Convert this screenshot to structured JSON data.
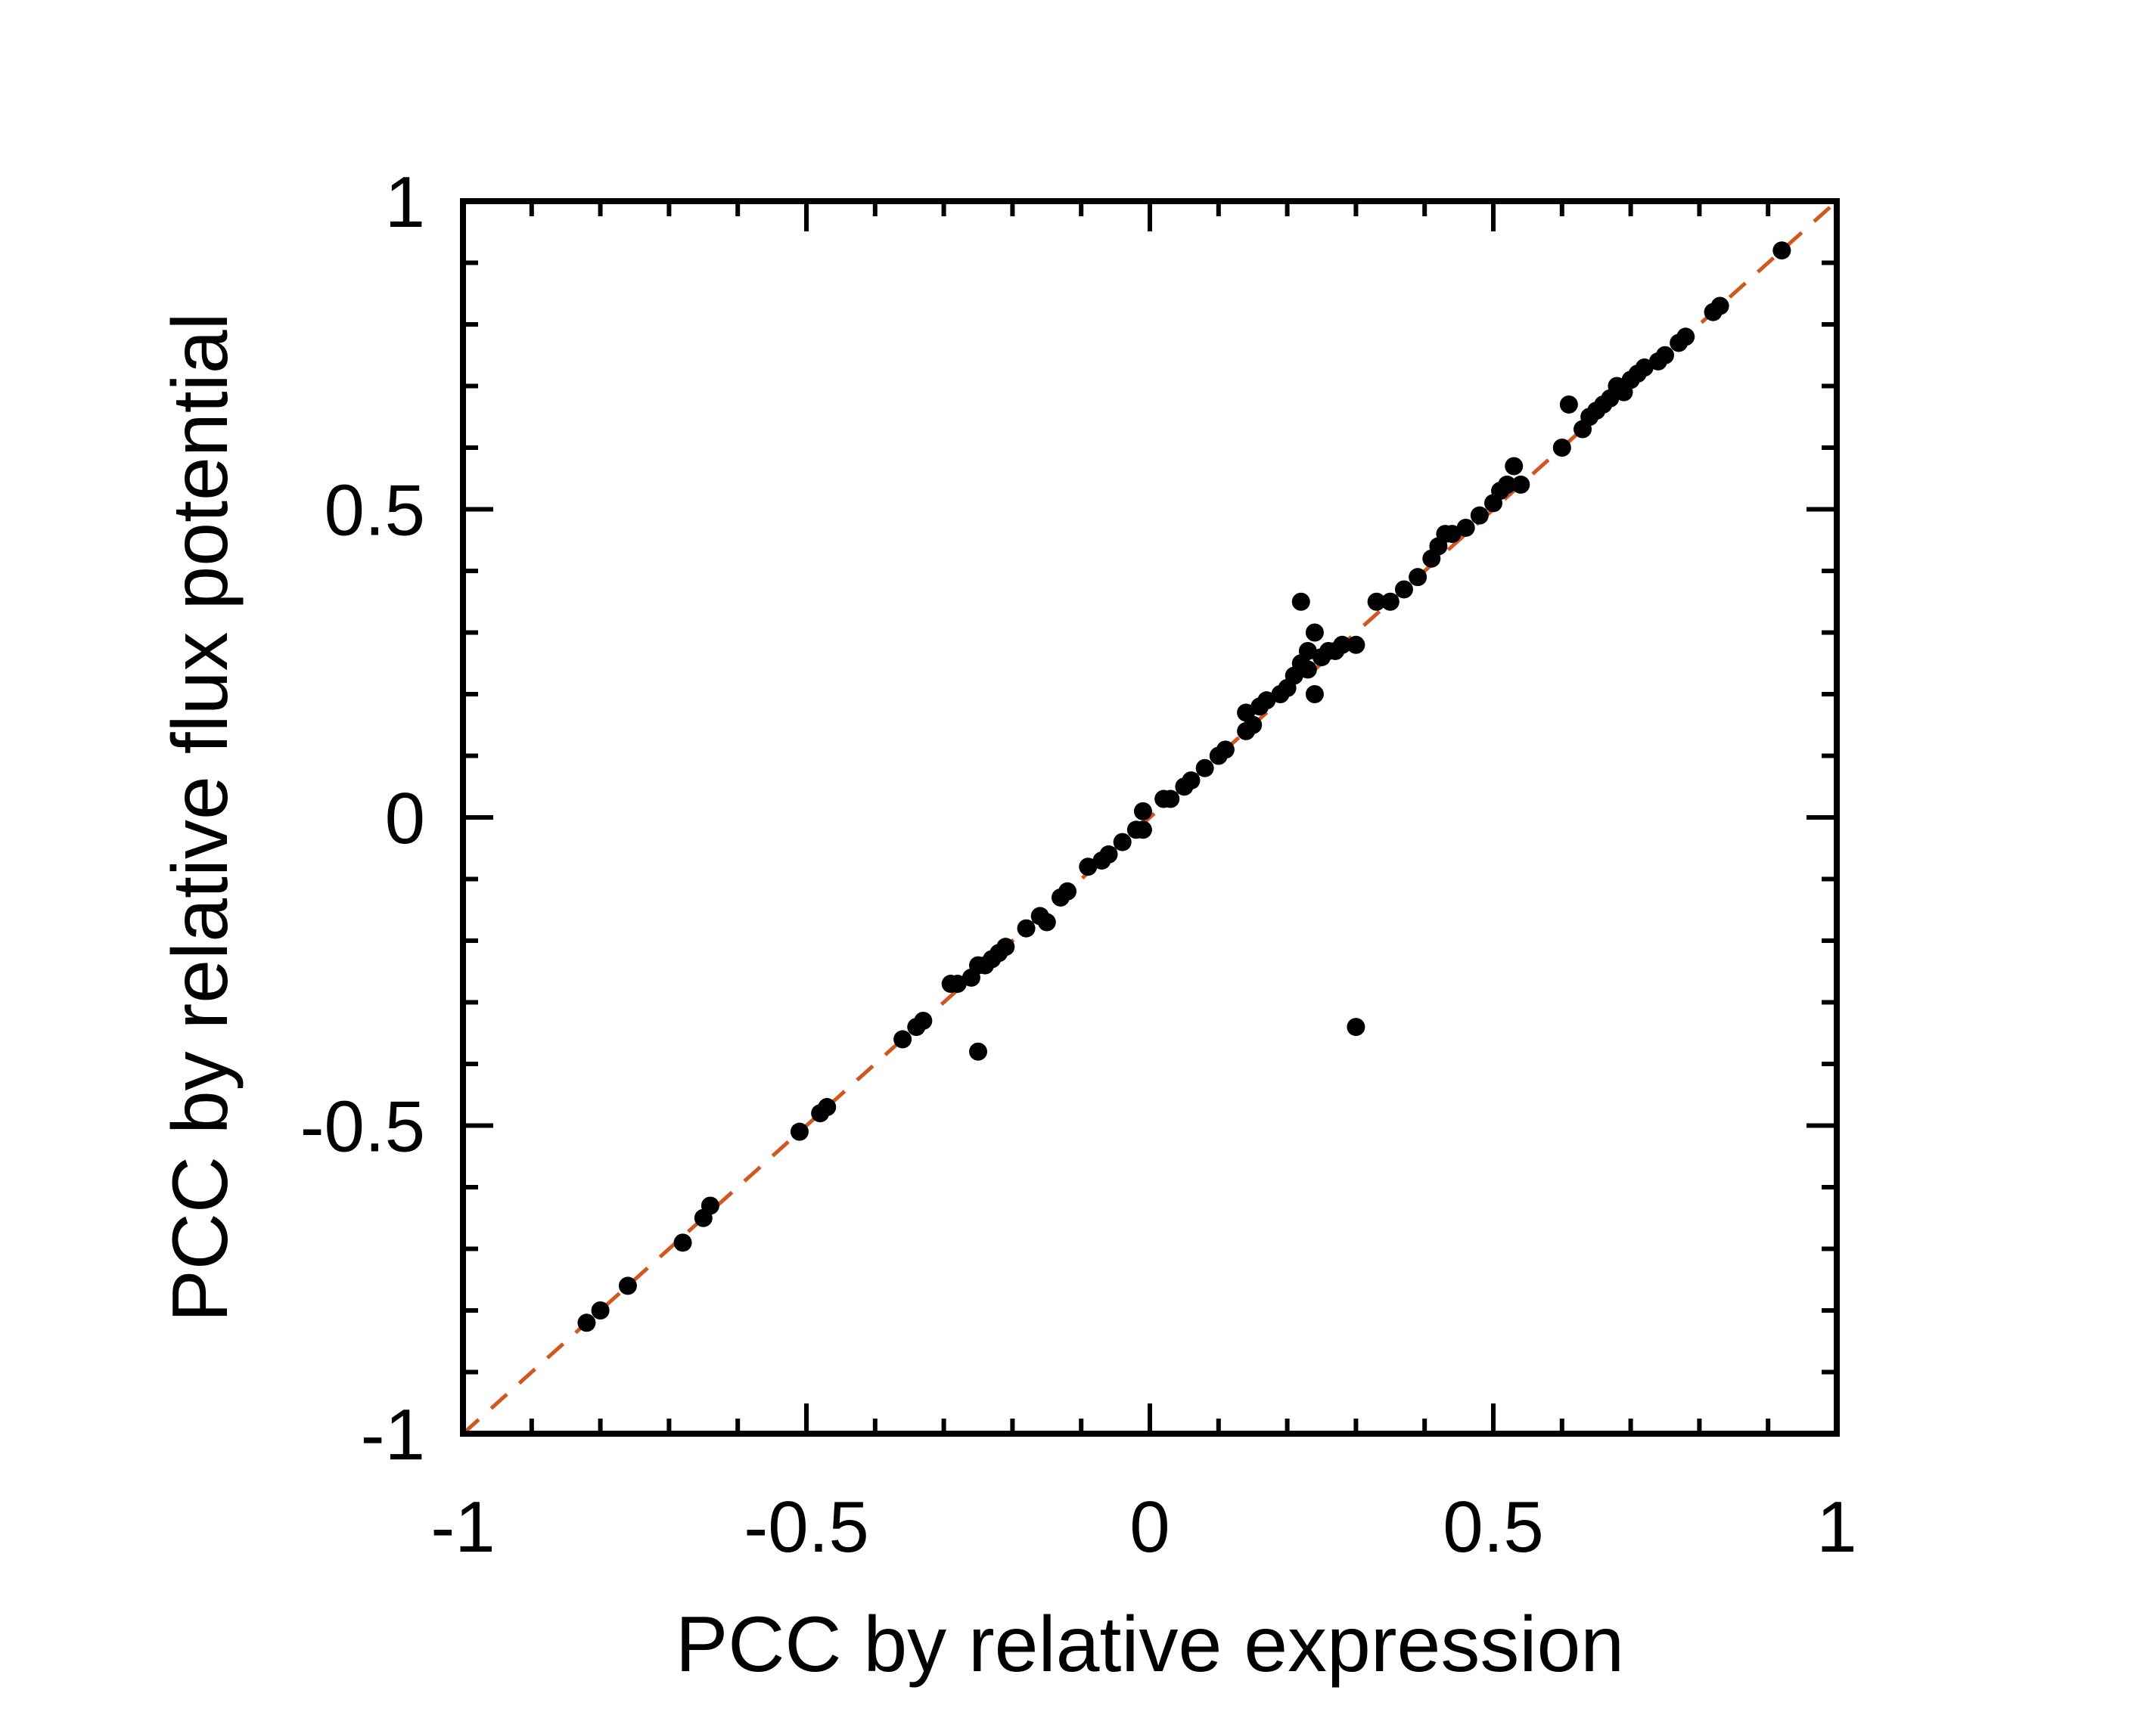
{
  "chart_data": {
    "type": "scatter",
    "title": "",
    "xlabel": "PCC by relative expression",
    "ylabel": "PCC by relative flux potential",
    "xlim": [
      -1,
      1
    ],
    "ylim": [
      -1,
      1
    ],
    "xticks": [
      -1,
      -0.5,
      0,
      0.5,
      1
    ],
    "yticks": [
      -1,
      -0.5,
      0,
      0.5,
      1
    ],
    "xtick_labels": [
      "-1",
      "-0.5",
      "0",
      "0.5",
      "1"
    ],
    "ytick_labels": [
      "-1",
      "-0.5",
      "0",
      "0.5",
      "1"
    ],
    "minor_tick_step": 0.1,
    "grid": false,
    "legend": false,
    "reference_line": {
      "style": "dashed",
      "color": "#D2561F",
      "from": [
        -1,
        -1
      ],
      "to": [
        1,
        1
      ]
    },
    "point_color": "#000000",
    "points": [
      [
        0.92,
        0.92
      ],
      [
        0.83,
        0.83
      ],
      [
        0.82,
        0.82
      ],
      [
        0.78,
        0.78
      ],
      [
        0.77,
        0.77
      ],
      [
        0.75,
        0.75
      ],
      [
        0.74,
        0.74
      ],
      [
        0.72,
        0.73
      ],
      [
        0.71,
        0.72
      ],
      [
        0.7,
        0.71
      ],
      [
        0.68,
        0.7
      ],
      [
        0.69,
        0.69
      ],
      [
        0.67,
        0.68
      ],
      [
        0.66,
        0.67
      ],
      [
        0.65,
        0.66
      ],
      [
        0.64,
        0.65
      ],
      [
        0.61,
        0.67
      ],
      [
        0.63,
        0.63
      ],
      [
        0.6,
        0.6
      ],
      [
        0.53,
        0.57
      ],
      [
        0.54,
        0.54
      ],
      [
        0.52,
        0.54
      ],
      [
        0.51,
        0.53
      ],
      [
        0.5,
        0.51
      ],
      [
        0.48,
        0.49
      ],
      [
        0.46,
        0.47
      ],
      [
        0.44,
        0.46
      ],
      [
        0.43,
        0.46
      ],
      [
        0.42,
        0.44
      ],
      [
        0.41,
        0.42
      ],
      [
        0.39,
        0.39
      ],
      [
        0.37,
        0.37
      ],
      [
        0.35,
        0.35
      ],
      [
        0.33,
        0.35
      ],
      [
        0.3,
        0.28
      ],
      [
        0.28,
        0.28
      ],
      [
        0.27,
        0.27
      ],
      [
        0.26,
        0.27
      ],
      [
        0.25,
        0.26
      ],
      [
        0.24,
        0.3
      ],
      [
        0.22,
        0.35
      ],
      [
        0.23,
        0.27
      ],
      [
        0.22,
        0.25
      ],
      [
        0.23,
        0.24
      ],
      [
        0.21,
        0.23
      ],
      [
        0.24,
        0.2
      ],
      [
        0.2,
        0.21
      ],
      [
        0.19,
        0.2
      ],
      [
        0.17,
        0.19
      ],
      [
        0.16,
        0.18
      ],
      [
        0.14,
        0.17
      ],
      [
        0.15,
        0.15
      ],
      [
        0.14,
        0.14
      ],
      [
        0.11,
        0.11
      ],
      [
        0.1,
        0.1
      ],
      [
        0.08,
        0.08
      ],
      [
        0.06,
        0.06
      ],
      [
        0.05,
        0.05
      ],
      [
        0.03,
        0.03
      ],
      [
        0.02,
        0.03
      ],
      [
        -0.01,
        0.01
      ],
      [
        -0.01,
        -0.02
      ],
      [
        -0.02,
        -0.02
      ],
      [
        -0.04,
        -0.04
      ],
      [
        -0.06,
        -0.06
      ],
      [
        -0.07,
        -0.07
      ],
      [
        -0.09,
        -0.08
      ],
      [
        -0.12,
        -0.12
      ],
      [
        -0.13,
        -0.13
      ],
      [
        -0.15,
        -0.17
      ],
      [
        -0.16,
        -0.16
      ],
      [
        -0.18,
        -0.18
      ],
      [
        -0.21,
        -0.21
      ],
      [
        -0.22,
        -0.22
      ],
      [
        -0.23,
        -0.23
      ],
      [
        -0.24,
        -0.24
      ],
      [
        -0.25,
        -0.24
      ],
      [
        -0.26,
        -0.26
      ],
      [
        -0.28,
        -0.27
      ],
      [
        -0.29,
        -0.27
      ],
      [
        -0.25,
        -0.38
      ],
      [
        -0.33,
        -0.33
      ],
      [
        -0.34,
        -0.34
      ],
      [
        -0.36,
        -0.36
      ],
      [
        0.3,
        -0.34
      ],
      [
        -0.47,
        -0.47
      ],
      [
        -0.48,
        -0.48
      ],
      [
        -0.51,
        -0.51
      ],
      [
        -0.64,
        -0.63
      ],
      [
        -0.65,
        -0.65
      ],
      [
        -0.68,
        -0.69
      ],
      [
        -0.76,
        -0.76
      ],
      [
        -0.8,
        -0.8
      ],
      [
        -0.82,
        -0.82
      ]
    ]
  }
}
